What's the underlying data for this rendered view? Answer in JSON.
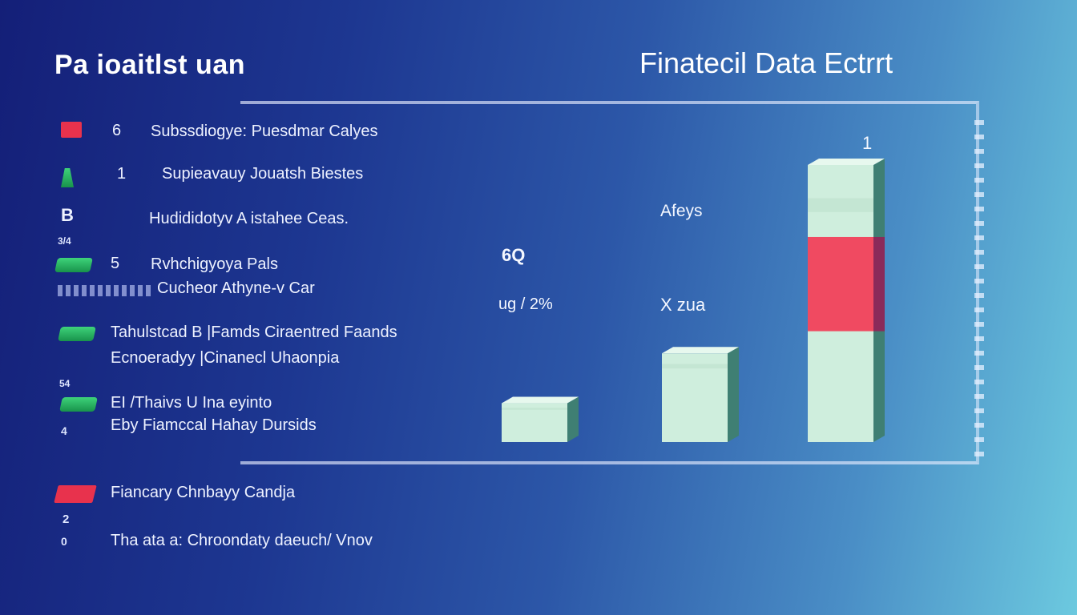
{
  "header": {
    "title": "Pa ioaitlst uan"
  },
  "legend": {
    "items": [
      {
        "num": "6",
        "label": "Subssdiogye: Puesdmar Calyes",
        "marker": "red"
      },
      {
        "num": "1",
        "label": "Supieavauy Jouatsh Biestes",
        "marker": "green-small"
      },
      {
        "num": "B",
        "label": "Hudididotyv A istahee Ceas.",
        "marker": "none"
      },
      {
        "num": "5",
        "label": "Rvhchigyoya Pals",
        "marker": "green"
      },
      {
        "num": "",
        "label": "Cucheor Athyne-v Car",
        "marker": "lines"
      },
      {
        "num": "",
        "label": "Tahulstcad B |Famds Ciraentred Faands",
        "marker": "green"
      },
      {
        "num": "",
        "label": "Ecnoeradyy |Cinanecl Uhaonpia",
        "marker": "none"
      },
      {
        "num": "",
        "label": "EI /Thaivs U Ina eyinto",
        "marker": "green"
      },
      {
        "num": "",
        "label": "Eby Fiamccal Hahay Dursids",
        "marker": "none"
      },
      {
        "num": "",
        "label": "Fiancary Chnbayy Candja",
        "marker": "red"
      },
      {
        "num": "",
        "label": "Tha ata a: Chroondaty daeuch/ Vnov",
        "marker": "none"
      }
    ],
    "side_numbers": [
      "3/4",
      "54",
      "4",
      "2",
      "0"
    ]
  },
  "colors": {
    "bar_fill": "#cfeedd",
    "bar_top": "#e7f8ee",
    "bar_side": "#3f7f73",
    "highlight": "#f04a61",
    "highlight_side": "#8a2a5a"
  },
  "chart_data": {
    "type": "bar",
    "title": "Finatecil Data Ectrrt",
    "categories": [
      "",
      "",
      ""
    ],
    "series": [
      {
        "values": [
          14,
          32,
          100
        ]
      }
    ],
    "highlight": {
      "index": 2,
      "from": 40,
      "to": 74
    },
    "ylim": [
      0,
      100
    ],
    "annotations": [
      "6Q",
      "ug / 2%",
      "Afeys",
      "X zua",
      "1"
    ],
    "grid": false
  }
}
